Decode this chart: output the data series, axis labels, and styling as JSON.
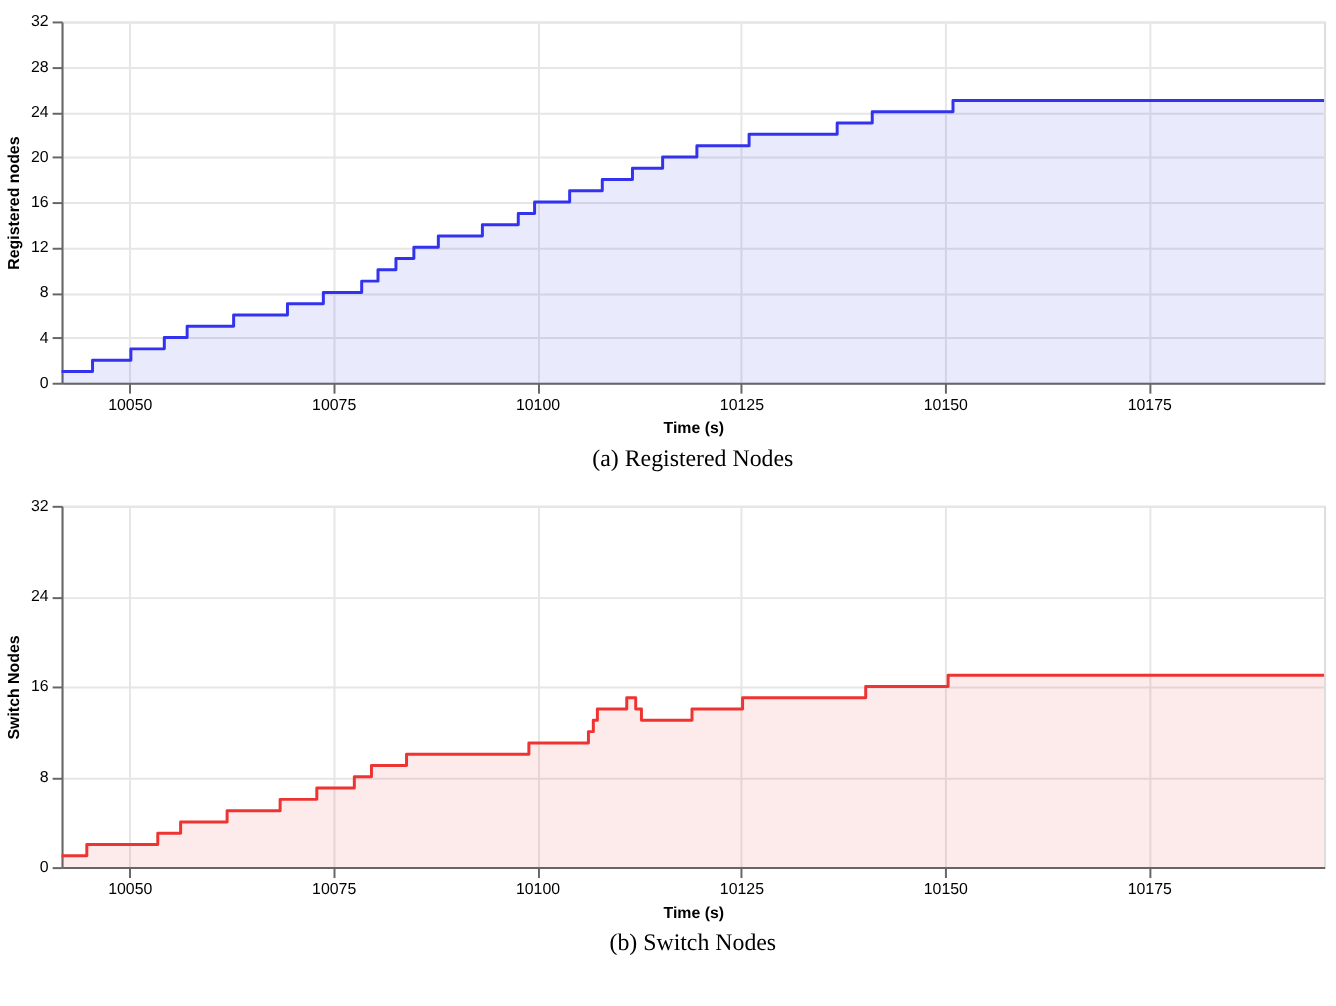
{
  "chart_data": [
    {
      "type": "area",
      "title": "(a) Registered Nodes",
      "xlabel": "Time (s)",
      "ylabel": "Registered nodes",
      "xlim": [
        10041.7,
        10196.5
      ],
      "xticks": [
        10050,
        10075,
        10100,
        10125,
        10150,
        10175
      ],
      "ylim": [
        0,
        32
      ],
      "yticks": [
        0,
        4,
        8,
        12,
        16,
        20,
        24,
        28,
        32
      ],
      "grid": true,
      "series": [
        {
          "color": "#3333ee",
          "x": [
            10041.7,
            10045.5,
            10045.5,
            10050.2,
            10050.2,
            10054.3,
            10054.3,
            10057.1,
            10057.1,
            10062.8,
            10062.8,
            10069.4,
            10069.4,
            10073.8,
            10073.8,
            10078.5,
            10078.5,
            10080.5,
            10080.5,
            10082.7,
            10082.7,
            10084.9,
            10084.9,
            10087.9,
            10087.9,
            10093.3,
            10093.3,
            10097.7,
            10097.7,
            10099.7,
            10099.7,
            10104,
            10104,
            10108,
            10108,
            10111.7,
            10111.7,
            10115.4,
            10115.4,
            10119.6,
            10119.6,
            10126,
            10126,
            10136.8,
            10136.8,
            10141.1,
            10141.1,
            10151,
            10151,
            10196.5
          ],
          "values": [
            1,
            1,
            2,
            2,
            3,
            3,
            4,
            4,
            5,
            5,
            6,
            6,
            7,
            7,
            8,
            8,
            9,
            9,
            10,
            10,
            11,
            11,
            12,
            12,
            13,
            13,
            14,
            14,
            15,
            15,
            16,
            16,
            17,
            17,
            18,
            18,
            19,
            19,
            20,
            20,
            21,
            21,
            22,
            22,
            23,
            23,
            24,
            24,
            25,
            25
          ]
        }
      ]
    },
    {
      "type": "area",
      "title": "(b) Switch Nodes",
      "xlabel": "Time (s)",
      "ylabel": "Switch Nodes",
      "xlim": [
        10041.7,
        10196.5
      ],
      "xticks": [
        10050,
        10075,
        10100,
        10125,
        10150,
        10175
      ],
      "ylim": [
        0,
        32
      ],
      "yticks": [
        0,
        8,
        16,
        24,
        32
      ],
      "grid": true,
      "series": [
        {
          "color": "#ee3333",
          "x": [
            10041.7,
            10044.8,
            10044.8,
            10053.5,
            10053.5,
            10056.3,
            10056.3,
            10062,
            10062,
            10068.5,
            10068.5,
            10073,
            10073,
            10077.6,
            10077.6,
            10079.7,
            10079.7,
            10084,
            10084,
            10099,
            10099,
            10106.3,
            10106.3,
            10106.9,
            10106.9,
            10107.4,
            10107.4,
            10111,
            10111,
            10112.1,
            10112.1,
            10112.8,
            10112.8,
            10119,
            10119,
            10125.2,
            10125.2,
            10140.3,
            10140.3,
            10150.4,
            10150.4,
            10196.5
          ],
          "values": [
            1,
            1,
            2,
            2,
            3,
            3,
            4,
            4,
            5,
            5,
            6,
            6,
            7,
            7,
            8,
            8,
            9,
            9,
            10,
            10,
            11,
            11,
            12,
            12,
            13,
            13,
            14,
            14,
            15,
            15,
            14,
            14,
            13,
            13,
            14,
            14,
            15,
            15,
            16,
            16,
            17,
            17
          ]
        }
      ]
    }
  ]
}
